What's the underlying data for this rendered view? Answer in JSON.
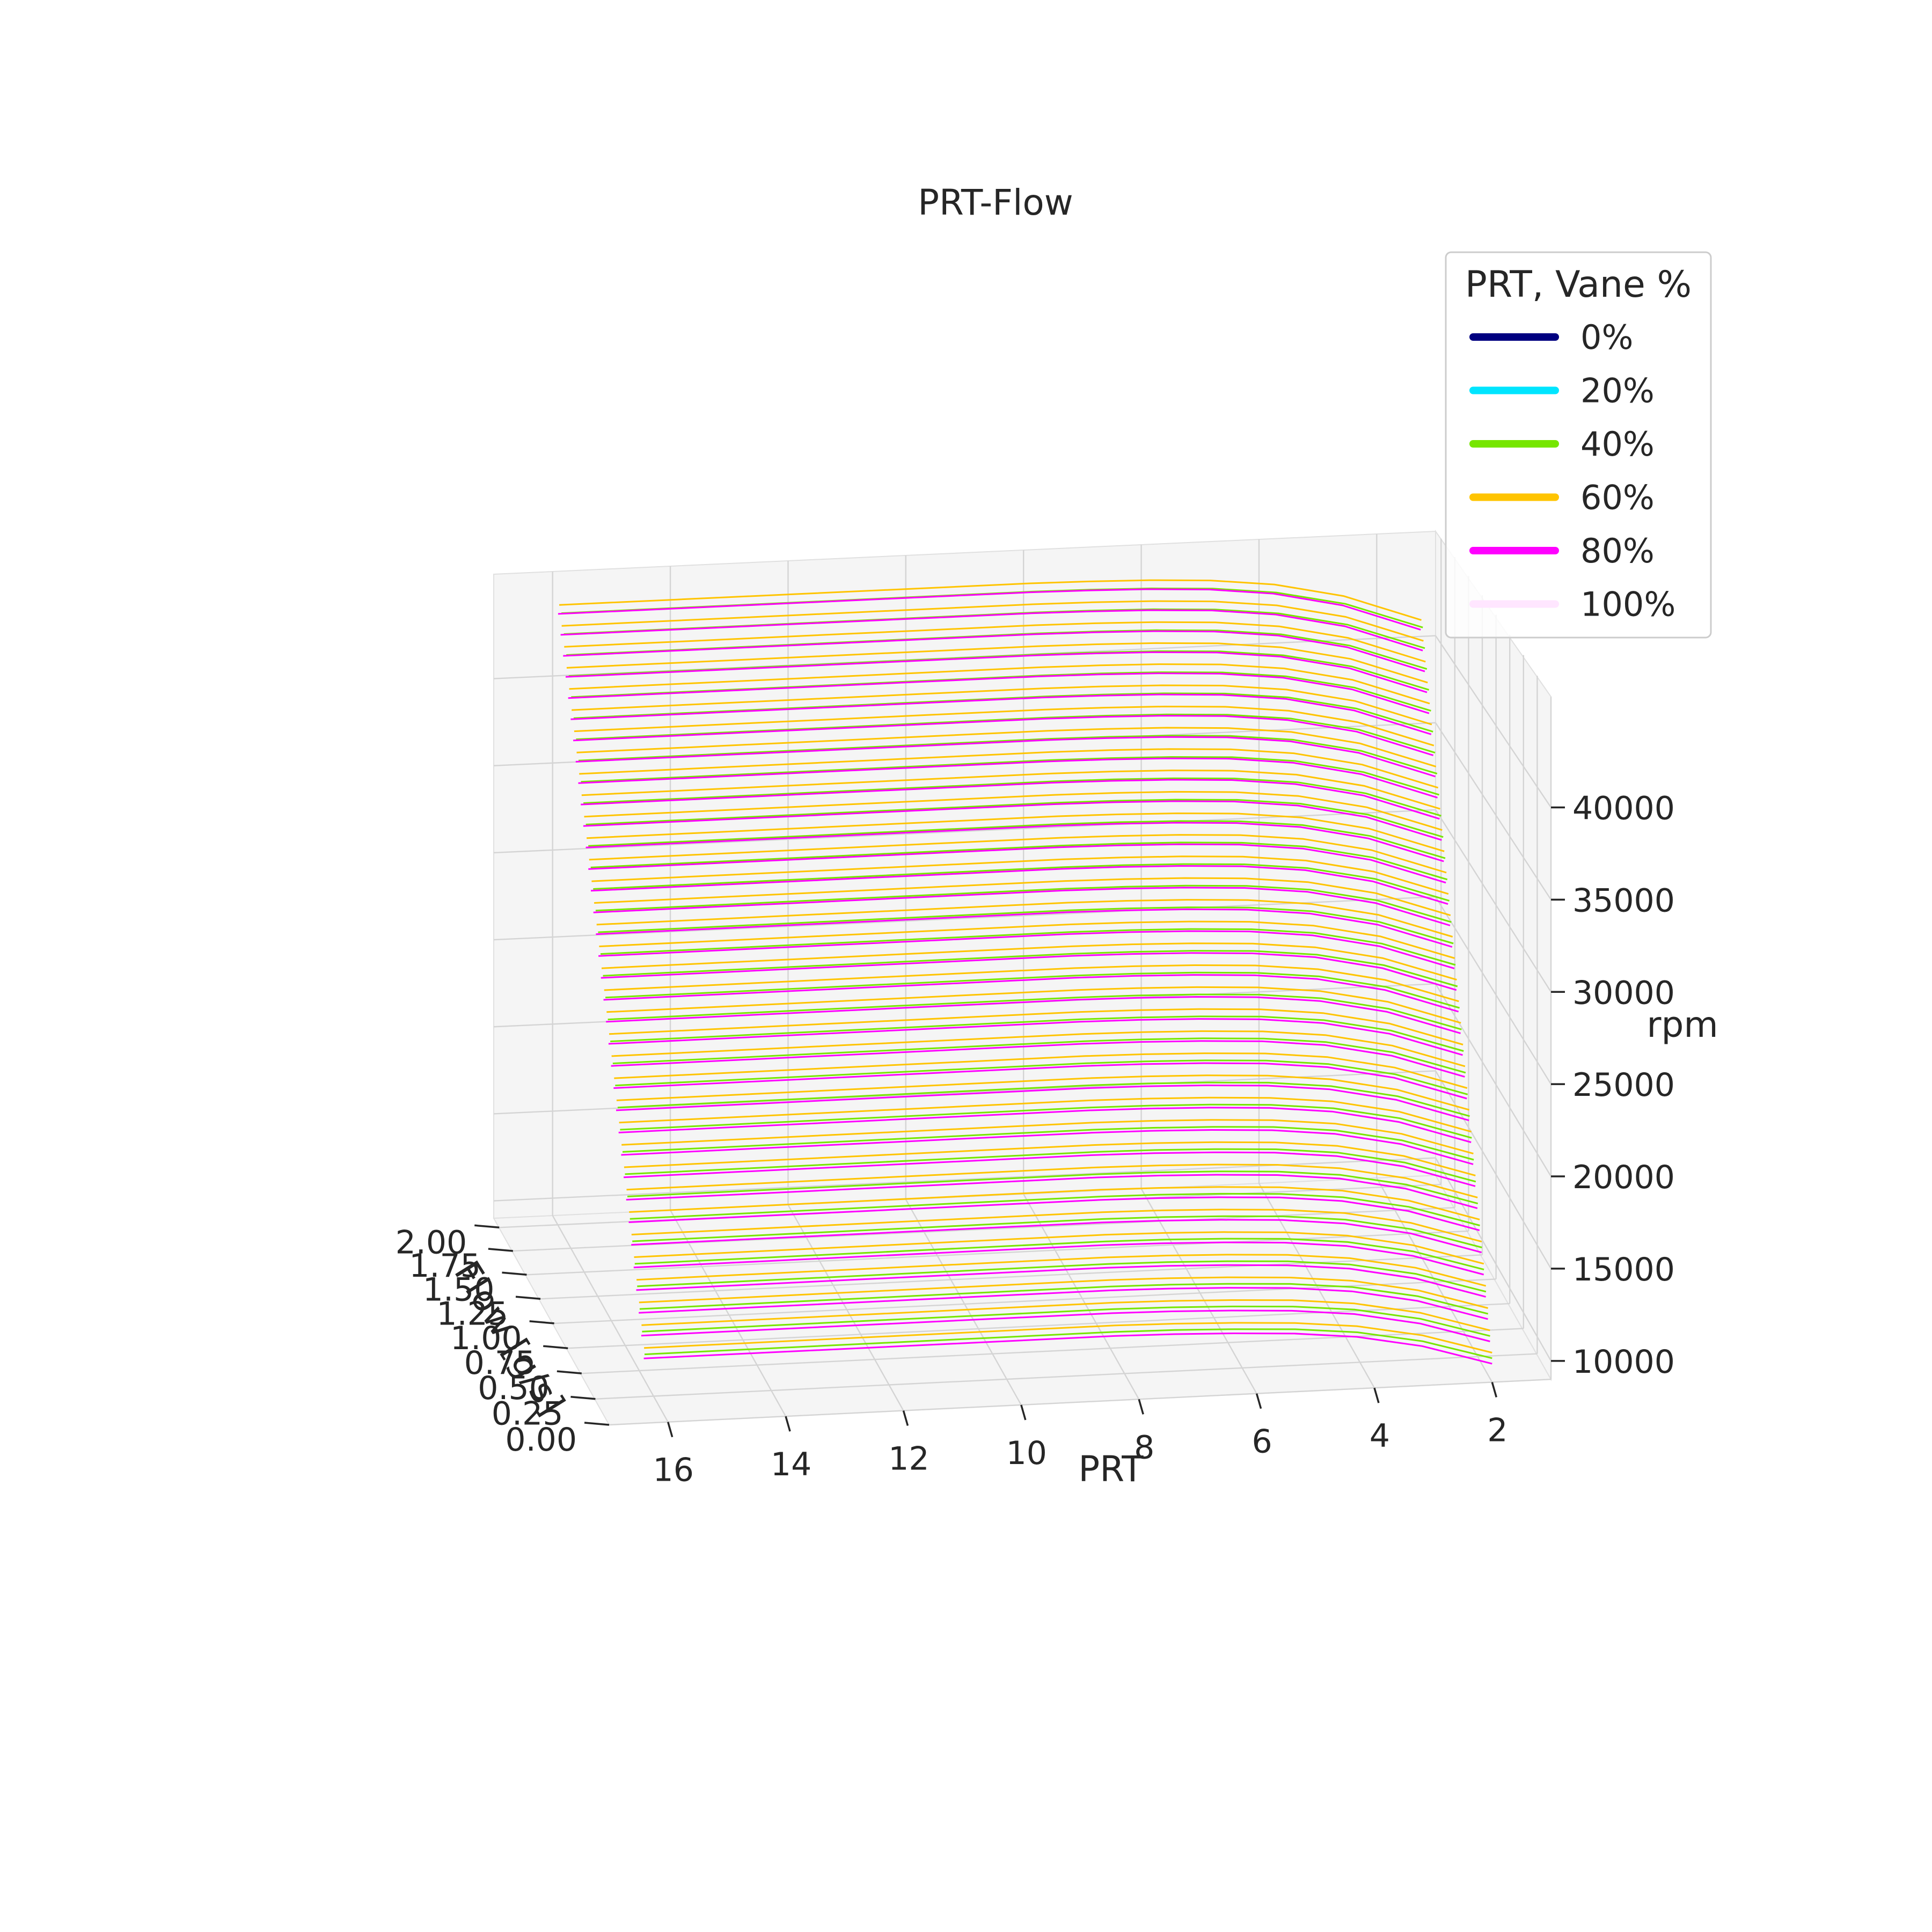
{
  "chart_data": {
    "type": "line",
    "projection": "3d",
    "title": "PRT-Flow",
    "xlabel": "PRT",
    "ylabel": "Flow [g/s]",
    "zlabel": "rpm",
    "x_ticks": [
      "16",
      "14",
      "12",
      "10",
      "8",
      "6",
      "4",
      "2"
    ],
    "y_ticks": [
      "2.00",
      "1.75",
      "1.50",
      "1.25",
      "1.00",
      "0.75",
      "0.50",
      "0.25",
      "0.00"
    ],
    "z_ticks": [
      "40000",
      "35000",
      "30000",
      "25000",
      "20000",
      "15000",
      "10000"
    ],
    "xlim": [
      1,
      17
    ],
    "ylim": [
      0,
      2.1
    ],
    "zlim": [
      9000,
      46000
    ],
    "grid": true,
    "pane_color": "#f5f5f5",
    "grid_color": "#d4d4d4",
    "legend": {
      "title": "PRT, Vane %",
      "placement": "top-right",
      "entries": [
        {
          "label": "0%",
          "color": "#000080"
        },
        {
          "label": "20%",
          "color": "#00e5ff"
        },
        {
          "label": "40%",
          "color": "#76e600"
        },
        {
          "label": "60%",
          "color": "#ffc400"
        },
        {
          "label": "80%",
          "color": "#ff00ff"
        },
        {
          "label": "100%",
          "color": "#ffe6ff"
        }
      ]
    },
    "rpm_levels": [
      10000,
      11000,
      12000,
      13000,
      14000,
      15000,
      16000,
      17000,
      18000,
      19000,
      20000,
      21000,
      22000,
      23000,
      24000,
      25000,
      26000,
      27000,
      28000,
      29000,
      30000,
      31000,
      32000,
      33000,
      34000,
      35000,
      36000,
      37000,
      38000,
      39000,
      40000,
      41000,
      42000,
      43000,
      44000
    ],
    "curve_profile": {
      "x": [
        2,
        3,
        4,
        5,
        6,
        7,
        8,
        10,
        12,
        14,
        16
      ],
      "flow_at_10000_rpm": [
        0.0,
        0.2,
        0.32,
        0.38,
        0.41,
        0.43,
        0.44,
        0.44,
        0.44,
        0.44,
        0.44
      ],
      "flow_at_44000_rpm": [
        1.3,
        1.65,
        1.84,
        1.93,
        1.97,
        1.99,
        2.0,
        2.0,
        2.0,
        2.0,
        2.0
      ]
    },
    "series": [
      {
        "name": "40%",
        "color": "#76e600",
        "flow_scale": 0.97,
        "rpm_offset": 300
      },
      {
        "name": "60%",
        "color": "#ffc400",
        "flow_scale": 0.99,
        "rpm_offset": 600
      },
      {
        "name": "80%",
        "color": "#ff00ff",
        "flow_scale": 1.0,
        "rpm_offset": 0
      }
    ]
  }
}
